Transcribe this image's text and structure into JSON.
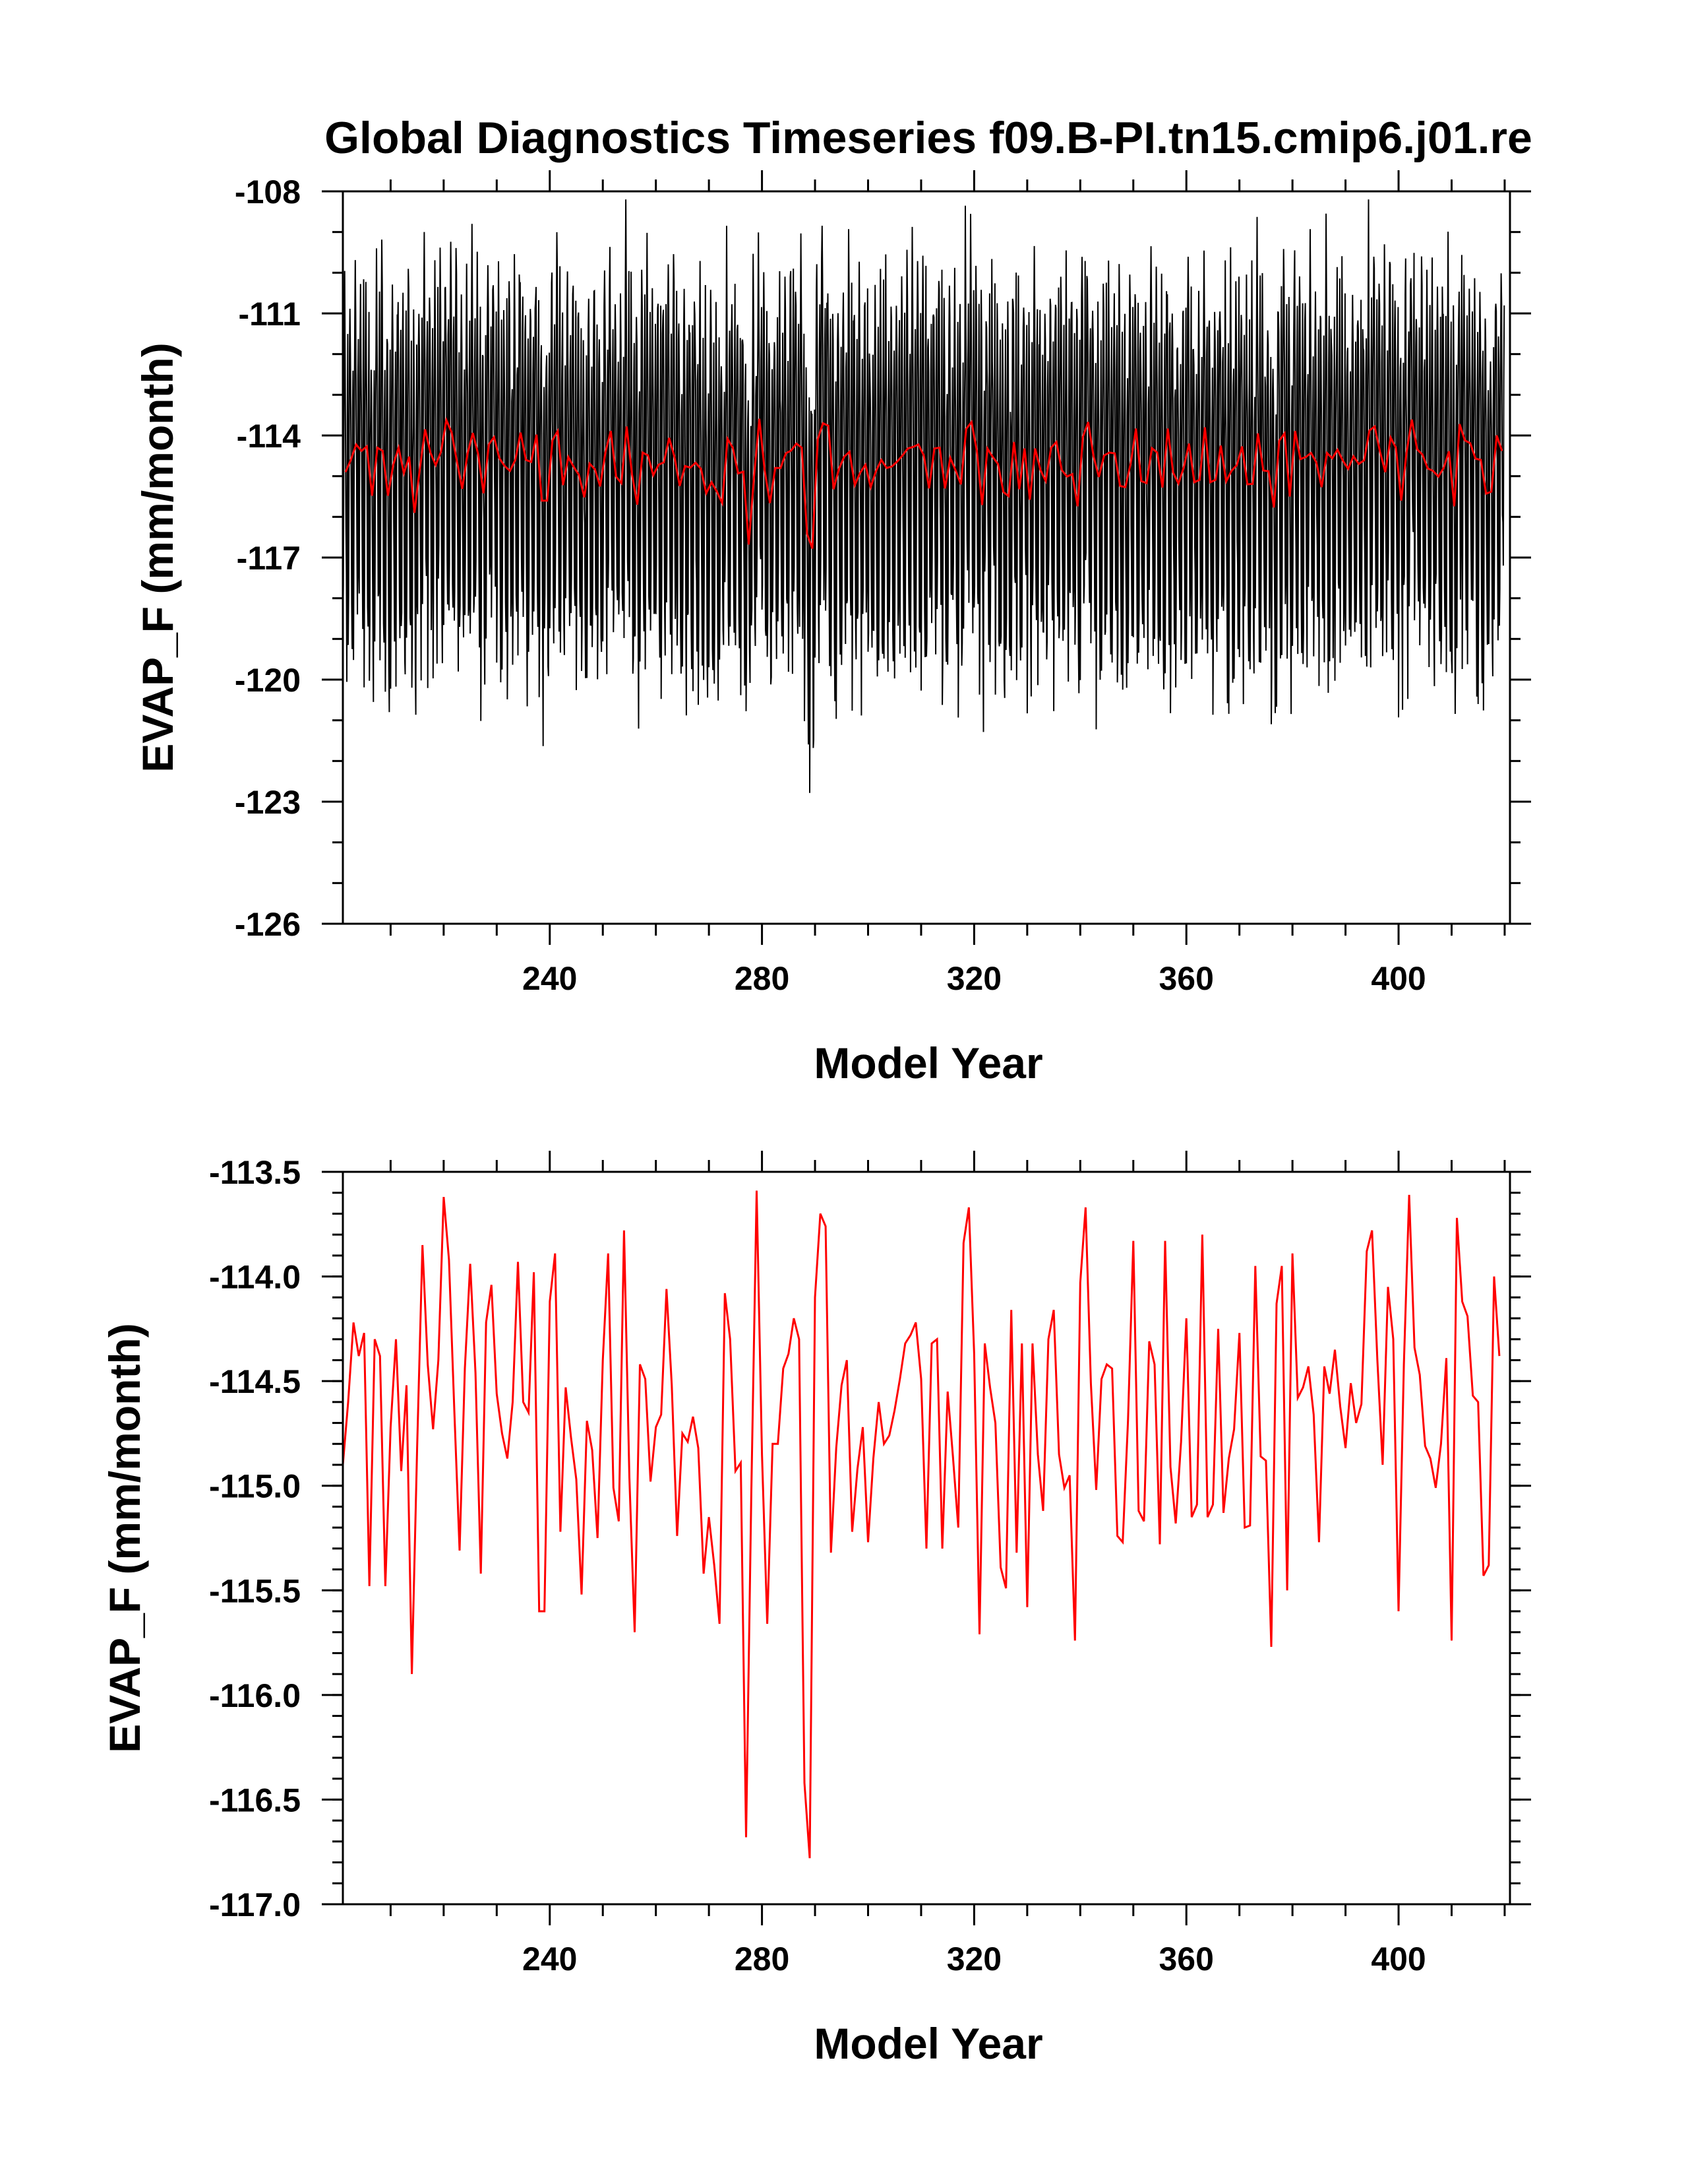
{
  "chart_data": [
    {
      "type": "line",
      "title": "Global Diagnostics Timeseries f09.B-PI.tn15.cmip6.j01.re",
      "xlabel": "Model Year",
      "ylabel": "EVAP_F (mm/month)",
      "xlim": [
        201,
        421
      ],
      "ylim": [
        -126,
        -108
      ],
      "x_ticks": [
        240,
        280,
        320,
        360,
        400
      ],
      "y_ticks": [
        -108,
        -111,
        -114,
        -117,
        -120,
        -123,
        -126
      ],
      "grid": false,
      "legend": "none",
      "series": [
        {
          "kind": "monthly",
          "color": "#000000",
          "values_note": "monthly values, generated from annual means plus seasonal cycle",
          "x_start": 201,
          "step": 0.0833
        },
        {
          "kind": "annual",
          "color": "#ff0000"
        }
      ]
    },
    {
      "type": "line",
      "title": "",
      "xlabel": "Model Year",
      "ylabel": "EVAP_F (mm/month)",
      "xlim": [
        201,
        421
      ],
      "ylim": [
        -117.0,
        -113.5
      ],
      "x_ticks": [
        240,
        280,
        320,
        360,
        400
      ],
      "y_ticks": [
        "-113.5",
        "-114.0",
        "-114.5",
        "-115.0",
        "-115.5",
        "-116.0",
        "-116.5",
        "-117.0"
      ],
      "grid": false,
      "legend": "none",
      "series": [
        {
          "color": "#ff0000",
          "x_start": 201,
          "step": 1,
          "values": [
            -114.9,
            -114.6,
            -114.22,
            -114.38,
            -114.27,
            -115.48,
            -114.3,
            -114.38,
            -115.48,
            -114.72,
            -114.3,
            -114.93,
            -114.52,
            -115.9,
            -114.82,
            -113.85,
            -114.42,
            -114.73,
            -114.4,
            -113.62,
            -113.92,
            -114.64,
            -115.31,
            -114.44,
            -113.94,
            -114.46,
            -115.42,
            -114.22,
            -114.04,
            -114.56,
            -114.75,
            -114.87,
            -114.6,
            -113.93,
            -114.6,
            -114.65,
            -113.98,
            -115.6,
            -115.6,
            -114.12,
            -113.89,
            -115.22,
            -114.53,
            -114.77,
            -114.97,
            -115.52,
            -114.69,
            -114.83,
            -115.25,
            -114.4,
            -113.89,
            -115.01,
            -115.17,
            -113.78,
            -114.96,
            -115.7,
            -114.42,
            -114.49,
            -114.98,
            -114.72,
            -114.66,
            -114.06,
            -114.52,
            -115.24,
            -114.75,
            -114.79,
            -114.67,
            -114.82,
            -115.42,
            -115.15,
            -115.38,
            -115.66,
            -114.08,
            -114.3,
            -114.93,
            -114.89,
            -116.68,
            -115.02,
            -113.59,
            -114.85,
            -115.66,
            -114.8,
            -114.8,
            -114.44,
            -114.37,
            -114.2,
            -114.3,
            -116.42,
            -116.78,
            -114.1,
            -113.7,
            -113.76,
            -115.32,
            -114.82,
            -114.52,
            -114.4,
            -115.22,
            -114.92,
            -114.72,
            -115.27,
            -114.87,
            -114.6,
            -114.8,
            -114.76,
            -114.64,
            -114.49,
            -114.32,
            -114.28,
            -114.22,
            -114.49,
            -115.3,
            -114.32,
            -114.3,
            -115.3,
            -114.55,
            -114.86,
            -115.2,
            -113.84,
            -113.67,
            -114.37,
            -115.71,
            -114.32,
            -114.53,
            -114.7,
            -115.39,
            -115.49,
            -114.16,
            -115.32,
            -114.32,
            -115.58,
            -114.32,
            -114.85,
            -115.12,
            -114.3,
            -114.16,
            -114.85,
            -115.01,
            -114.95,
            -115.74,
            -114.03,
            -113.67,
            -114.51,
            -115.02,
            -114.49,
            -114.42,
            -114.44,
            -115.24,
            -115.27,
            -114.69,
            -113.83,
            -115.12,
            -115.17,
            -114.31,
            -114.42,
            -115.28,
            -113.83,
            -114.91,
            -115.18,
            -114.79,
            -114.2,
            -115.15,
            -115.09,
            -113.8,
            -115.15,
            -115.09,
            -114.25,
            -115.13,
            -114.87,
            -114.73,
            -114.27,
            -115.2,
            -115.19,
            -113.95,
            -114.86,
            -114.88,
            -115.77,
            -114.13,
            -113.95,
            -115.5,
            -113.89,
            -114.58,
            -114.53,
            -114.43,
            -114.66,
            -115.27,
            -114.43,
            -114.56,
            -114.35,
            -114.62,
            -114.82,
            -114.51,
            -114.7,
            -114.61,
            -113.88,
            -113.78,
            -114.4,
            -114.9,
            -114.05,
            -114.3,
            -115.6,
            -114.42,
            -113.61,
            -114.34,
            -114.47,
            -114.81,
            -114.87,
            -115.01,
            -114.8,
            -114.39,
            -115.74,
            -113.72,
            -114.12,
            -114.19,
            -114.57,
            -114.6,
            -115.43,
            -115.38,
            -114.0,
            -114.38
          ]
        }
      ]
    }
  ]
}
